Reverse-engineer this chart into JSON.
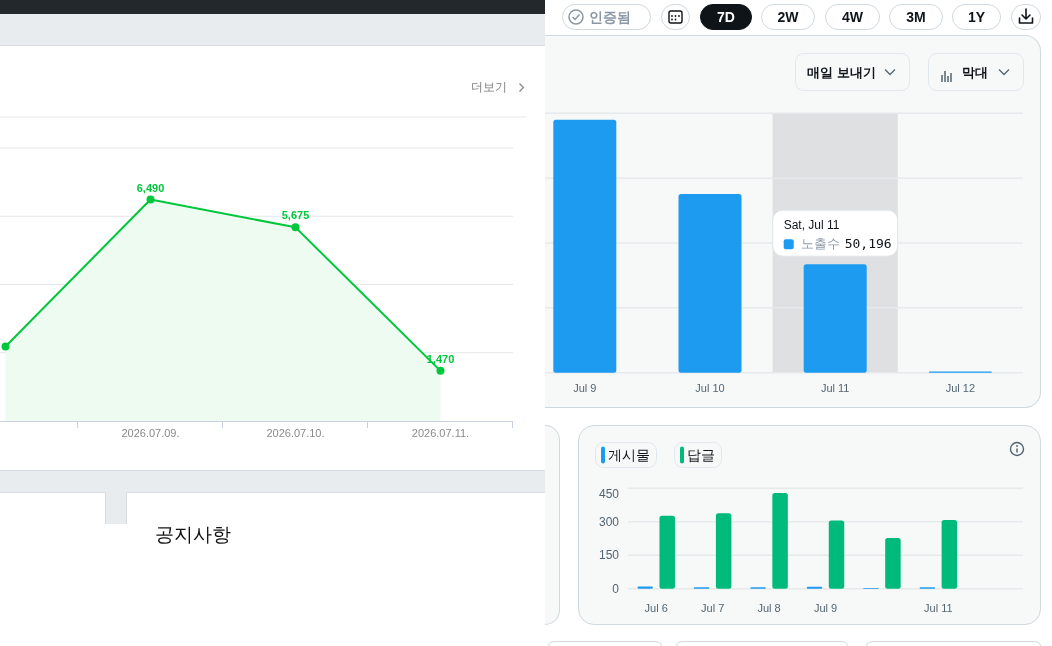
{
  "chart_data": [
    {
      "type": "area",
      "categories": [
        null,
        "2026.07.09.",
        "2026.07.10.",
        "2026.07.11."
      ],
      "series": [
        {
          "color": "#00c73c",
          "values": [
            2185,
            6490,
            5675,
            1470
          ],
          "value_labels": [
            null,
            "6,490",
            "5,675",
            "1,470"
          ]
        }
      ],
      "ylim": [
        0,
        8000
      ],
      "yticks": [
        {
          "value": 2000,
          "label": null
        },
        {
          "value": 4000,
          "label": null
        },
        {
          "value": 6000,
          "label": null
        },
        {
          "value": 8000,
          "label": null
        }
      ],
      "grid": "y",
      "marker": "circle",
      "tick_labels": "x",
      "annotations": [
        "더보기"
      ]
    },
    {
      "type": "bar",
      "categories": [
        "Jul 9",
        "Jul 10",
        "Jul 11",
        "Jul 12"
      ],
      "series": [
        {
          "name": "노출수",
          "color": "#1d9bf0",
          "values": [
            117000,
            82700,
            50196,
            600
          ],
          "value_labels": [
            null,
            null,
            "50,196",
            null
          ]
        }
      ],
      "ylim": [
        0,
        120000
      ],
      "yticks": [
        {
          "value": 0,
          "label": null
        },
        {
          "value": 30000,
          "label": null
        },
        {
          "value": 60000,
          "label": null
        },
        {
          "value": 90000,
          "label": null
        },
        {
          "value": 120000,
          "label": null
        }
      ],
      "grid": "y",
      "tick_labels": "x",
      "bands": [
        {
          "axis": "x",
          "from": "Jul 11",
          "to": "Jul 11",
          "color": "#dfe0e2"
        }
      ],
      "annotations": [
        "Sat, Jul 11",
        "인증됨",
        "7D",
        "2W",
        "4W",
        "3M",
        "1Y",
        "매일 보내기",
        "막대"
      ]
    },
    {
      "type": "bar",
      "categories": [
        "Jul 6",
        "Jul 7",
        "Jul 8",
        "Jul 9",
        null,
        "Jul 11",
        null
      ],
      "series": [
        {
          "name": "게시물",
          "color": "#1d9bf0",
          "values": [
            10,
            6,
            6,
            9,
            3,
            6,
            null
          ]
        },
        {
          "name": "답글",
          "color": "#00ba7c",
          "values": [
            327,
            338,
            429,
            306,
            227,
            308,
            null
          ]
        }
      ],
      "ylim": [
        0,
        450
      ],
      "yticks": [
        0,
        150,
        300,
        450
      ],
      "grid": "y",
      "legend": "top left"
    },
    {
      "type": "other",
      "title": "공지사항"
    }
  ]
}
